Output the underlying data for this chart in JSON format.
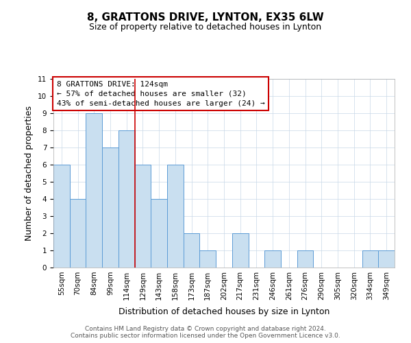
{
  "title": "8, GRATTONS DRIVE, LYNTON, EX35 6LW",
  "subtitle": "Size of property relative to detached houses in Lynton",
  "xlabel": "Distribution of detached houses by size in Lynton",
  "ylabel": "Number of detached properties",
  "bin_labels": [
    "55sqm",
    "70sqm",
    "84sqm",
    "99sqm",
    "114sqm",
    "129sqm",
    "143sqm",
    "158sqm",
    "173sqm",
    "187sqm",
    "202sqm",
    "217sqm",
    "231sqm",
    "246sqm",
    "261sqm",
    "276sqm",
    "290sqm",
    "305sqm",
    "320sqm",
    "334sqm",
    "349sqm"
  ],
  "bar_heights": [
    6,
    4,
    9,
    7,
    8,
    6,
    4,
    6,
    2,
    1,
    0,
    2,
    0,
    1,
    0,
    1,
    0,
    0,
    0,
    1,
    1
  ],
  "bar_color": "#c9dff0",
  "bar_edge_color": "#5b9bd5",
  "ylim": [
    0,
    11
  ],
  "yticks": [
    0,
    1,
    2,
    3,
    4,
    5,
    6,
    7,
    8,
    9,
    10,
    11
  ],
  "vline_color": "#cc0000",
  "vline_x": 4.5,
  "annotation_box_text": "8 GRATTONS DRIVE: 124sqm\n← 57% of detached houses are smaller (32)\n43% of semi-detached houses are larger (24) →",
  "annotation_box_color": "#ffffff",
  "annotation_box_edge_color": "#cc0000",
  "footer_line1": "Contains HM Land Registry data © Crown copyright and database right 2024.",
  "footer_line2": "Contains public sector information licensed under the Open Government Licence v3.0.",
  "background_color": "#ffffff",
  "grid_color": "#c8d8e8",
  "title_fontsize": 11,
  "subtitle_fontsize": 9,
  "axis_label_fontsize": 9,
  "tick_fontsize": 7.5,
  "annotation_fontsize": 8,
  "footer_fontsize": 6.5
}
